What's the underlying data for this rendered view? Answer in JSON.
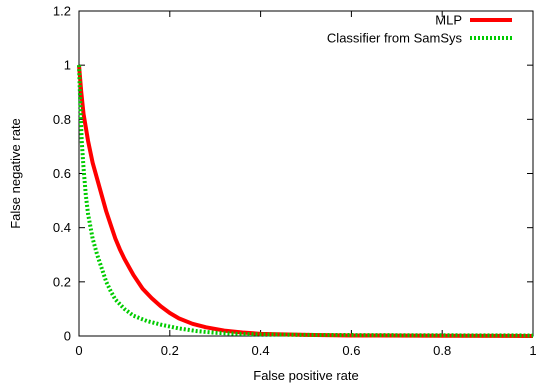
{
  "chart_data": {
    "type": "line",
    "xlabel": "False positive rate",
    "ylabel": "False negative rate",
    "xlim": [
      0,
      1
    ],
    "ylim": [
      0,
      1.2
    ],
    "x_ticks": [
      "0",
      "0.2",
      "0.4",
      "0.6",
      "0.8",
      "1"
    ],
    "y_ticks": [
      "0",
      "0.2",
      "0.4",
      "0.6",
      "0.8",
      "1",
      "1.2"
    ],
    "grid": false,
    "legend_position": "top-right",
    "series": [
      {
        "name": "MLP",
        "color": "#ff0000",
        "style": "solid",
        "points": [
          [
            0,
            1.0
          ],
          [
            0.005,
            0.9
          ],
          [
            0.01,
            0.82
          ],
          [
            0.02,
            0.72
          ],
          [
            0.03,
            0.64
          ],
          [
            0.04,
            0.58
          ],
          [
            0.05,
            0.52
          ],
          [
            0.06,
            0.46
          ],
          [
            0.07,
            0.41
          ],
          [
            0.08,
            0.36
          ],
          [
            0.09,
            0.32
          ],
          [
            0.1,
            0.285
          ],
          [
            0.12,
            0.225
          ],
          [
            0.14,
            0.175
          ],
          [
            0.16,
            0.14
          ],
          [
            0.18,
            0.11
          ],
          [
            0.2,
            0.085
          ],
          [
            0.22,
            0.065
          ],
          [
            0.25,
            0.045
          ],
          [
            0.28,
            0.032
          ],
          [
            0.32,
            0.02
          ],
          [
            0.36,
            0.013
          ],
          [
            0.4,
            0.008
          ],
          [
            0.5,
            0.004
          ],
          [
            0.6,
            0.002
          ],
          [
            0.8,
            0.001
          ],
          [
            1.0,
            0.0
          ]
        ]
      },
      {
        "name": "Classifier from SamSys",
        "color": "#00cc00",
        "style": "dotted",
        "points": [
          [
            0,
            1.0
          ],
          [
            0.003,
            0.85
          ],
          [
            0.006,
            0.72
          ],
          [
            0.01,
            0.62
          ],
          [
            0.015,
            0.52
          ],
          [
            0.02,
            0.45
          ],
          [
            0.03,
            0.36
          ],
          [
            0.04,
            0.3
          ],
          [
            0.05,
            0.25
          ],
          [
            0.06,
            0.2
          ],
          [
            0.07,
            0.165
          ],
          [
            0.08,
            0.135
          ],
          [
            0.1,
            0.1
          ],
          [
            0.12,
            0.075
          ],
          [
            0.15,
            0.055
          ],
          [
            0.18,
            0.042
          ],
          [
            0.22,
            0.028
          ],
          [
            0.26,
            0.018
          ],
          [
            0.3,
            0.012
          ],
          [
            0.35,
            0.008
          ],
          [
            0.4,
            0.006
          ],
          [
            0.5,
            0.004
          ],
          [
            0.7,
            0.003
          ],
          [
            1.0,
            0.002
          ]
        ]
      }
    ]
  }
}
